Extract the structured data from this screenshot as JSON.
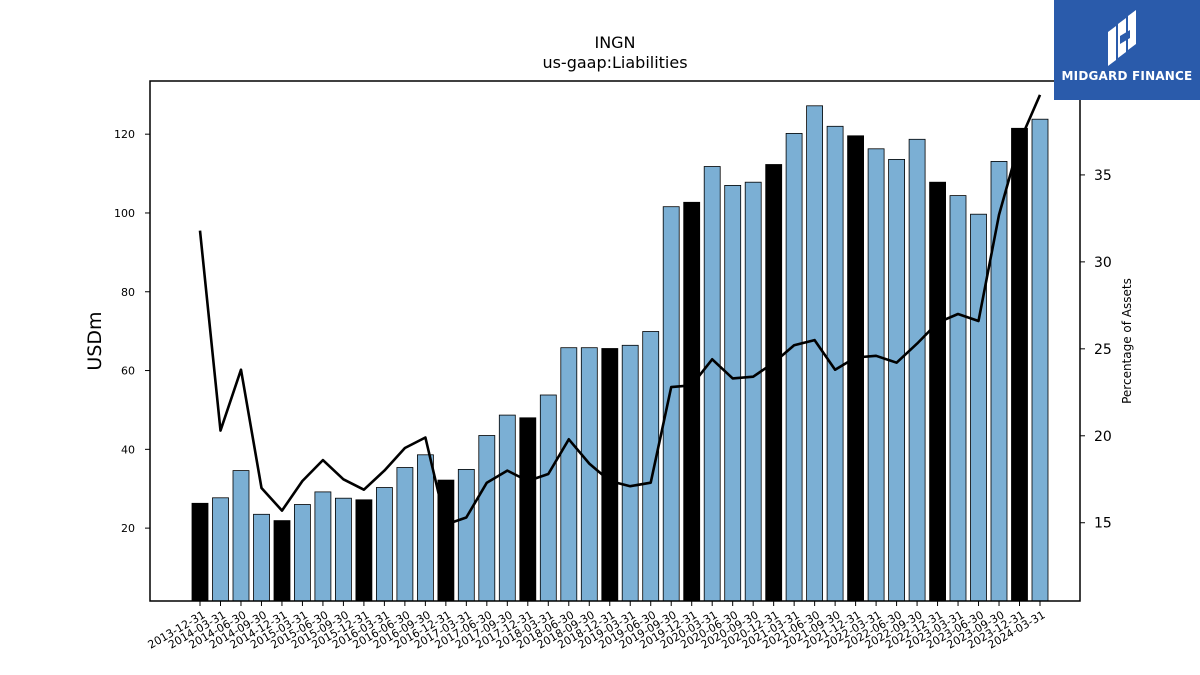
{
  "brand": {
    "name": "MIDGARD FINANCE",
    "bg_color": "#2a5bab",
    "icon": "midgard-logo-icon"
  },
  "chart_data": {
    "type": "bar",
    "title": "INGN",
    "subtitle": "us-gaap:Liabilities",
    "ylabel": "USDm",
    "y2label": "Percentage of Assets",
    "ylim": [
      1.5,
      133.5
    ],
    "y2lim": [
      10.5,
      40.4
    ],
    "yticks": [
      20,
      40,
      60,
      80,
      100,
      120
    ],
    "y2ticks": [
      15,
      20,
      25,
      30,
      35
    ],
    "bar_color": "#7bafd4",
    "highlight_color": "#000000",
    "line_color": "#000000",
    "categories": [
      "2013-12-31",
      "2014-03-31",
      "2014-06-30",
      "2014-09-30",
      "2014-12-31",
      "2015-03-31",
      "2015-06-30",
      "2015-09-30",
      "2015-12-31",
      "2016-03-31",
      "2016-06-30",
      "2016-09-30",
      "2016-12-31",
      "2017-03-31",
      "2017-06-30",
      "2017-09-30",
      "2017-12-31",
      "2018-03-31",
      "2018-06-30",
      "2018-09-30",
      "2018-12-31",
      "2019-03-31",
      "2019-06-30",
      "2019-09-30",
      "2019-12-31",
      "2020-03-31",
      "2020-06-30",
      "2020-09-30",
      "2020-12-31",
      "2021-03-31",
      "2021-06-30",
      "2021-09-30",
      "2021-12-31",
      "2022-03-31",
      "2022-06-30",
      "2022-09-30",
      "2022-12-31",
      "2023-03-31",
      "2023-06-30",
      "2023-09-30",
      "2023-12-31",
      "2024-03-31"
    ],
    "series": [
      {
        "type": "bar",
        "axis": "left",
        "values": [
          26.3,
          27.7,
          34.6,
          23.5,
          21.9,
          26.0,
          29.2,
          27.6,
          27.2,
          30.3,
          35.4,
          38.6,
          32.2,
          34.9,
          43.5,
          48.7,
          48.0,
          53.8,
          65.8,
          65.8,
          65.6,
          66.4,
          69.9,
          101.6,
          102.7,
          111.8,
          107.0,
          107.8,
          112.3,
          120.2,
          127.2,
          122.0,
          119.6,
          116.3,
          113.6,
          118.7,
          107.8,
          104.4,
          99.7,
          113.1,
          121.5,
          123.8
        ],
        "highlighted": [
          true,
          false,
          false,
          false,
          true,
          false,
          false,
          false,
          true,
          false,
          false,
          false,
          true,
          false,
          false,
          false,
          true,
          false,
          false,
          false,
          true,
          false,
          false,
          false,
          true,
          false,
          false,
          false,
          true,
          false,
          false,
          false,
          true,
          false,
          false,
          false,
          true,
          false,
          false,
          false,
          true,
          false
        ]
      },
      {
        "type": "line",
        "axis": "right",
        "values": [
          31.8,
          20.3,
          23.8,
          17.0,
          15.7,
          17.4,
          18.6,
          17.5,
          16.9,
          18.0,
          19.3,
          19.9,
          14.9,
          15.3,
          17.3,
          18.0,
          17.4,
          17.8,
          19.8,
          18.4,
          17.4,
          17.1,
          17.3,
          22.8,
          22.9,
          24.4,
          23.3,
          23.4,
          24.2,
          25.2,
          25.5,
          23.8,
          24.5,
          24.6,
          24.2,
          25.3,
          26.5,
          27.0,
          26.6,
          32.7,
          36.9,
          39.6
        ]
      }
    ]
  }
}
